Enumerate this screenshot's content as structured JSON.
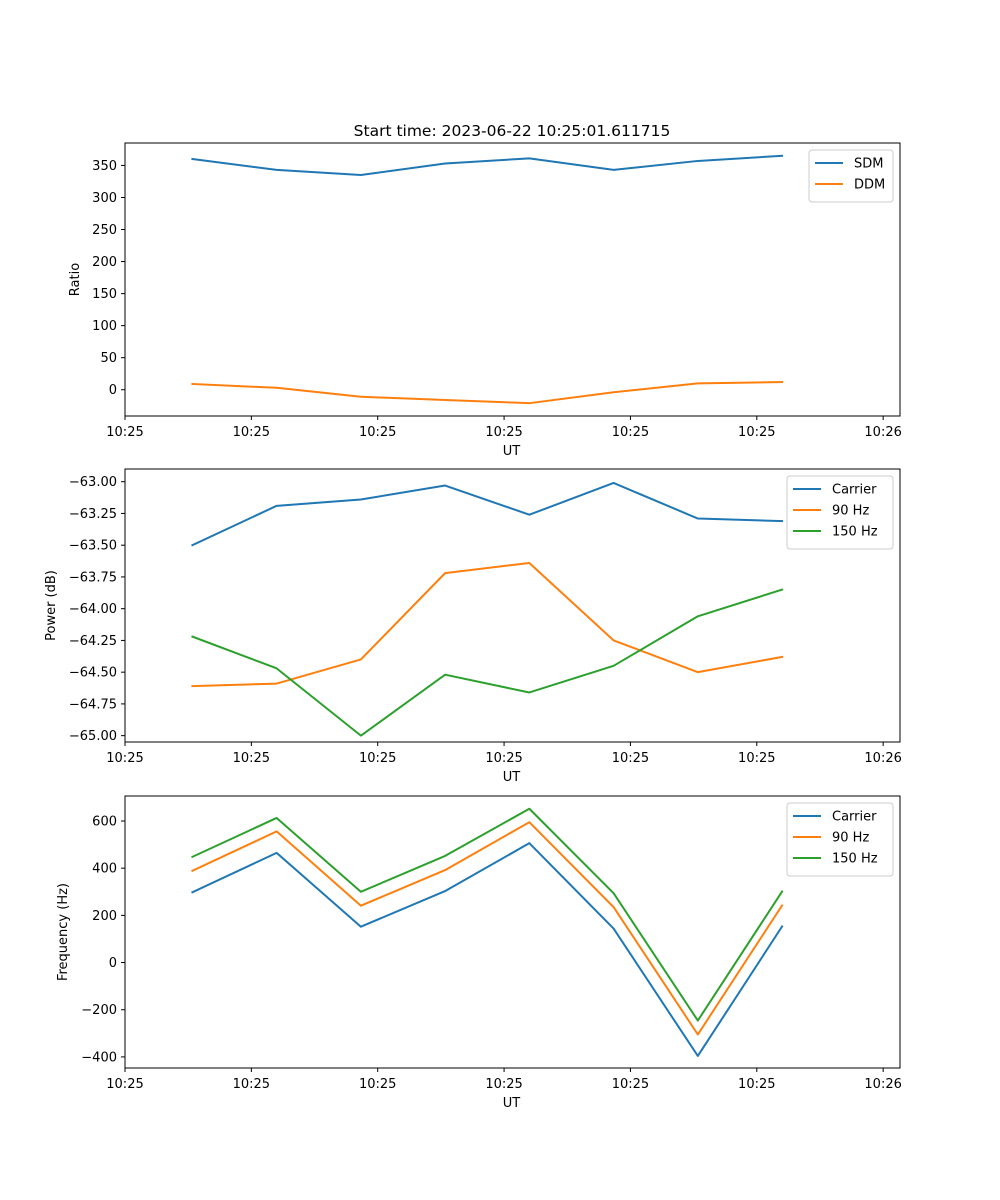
{
  "figure": {
    "title": "Start time: 2023-06-22 10:25:01.611715"
  },
  "chart_data": [
    {
      "type": "line",
      "xlabel": "UT",
      "ylabel": "Ratio",
      "x": [
        1,
        2,
        3,
        4,
        5,
        6,
        7,
        8
      ],
      "xlim": [
        0.2,
        9.4
      ],
      "x_ticks": [
        {
          "at": 0.2,
          "label": "10:25"
        },
        {
          "at": 1.7,
          "label": "10:25"
        },
        {
          "at": 3.2,
          "label": "10:25"
        },
        {
          "at": 4.7,
          "label": "10:25"
        },
        {
          "at": 6.2,
          "label": "10:25"
        },
        {
          "at": 7.7,
          "label": "10:25"
        },
        {
          "at": 9.2,
          "label": "10:26"
        }
      ],
      "ylim": [
        -41,
        385
      ],
      "y_ticks": [
        {
          "at": 0,
          "label": "0"
        },
        {
          "at": 50,
          "label": "50"
        },
        {
          "at": 100,
          "label": "100"
        },
        {
          "at": 150,
          "label": "150"
        },
        {
          "at": 200,
          "label": "200"
        },
        {
          "at": 250,
          "label": "250"
        },
        {
          "at": 300,
          "label": "300"
        },
        {
          "at": 350,
          "label": "350"
        }
      ],
      "legend_position": "top-right",
      "grid": false,
      "series": [
        {
          "name": "SDM",
          "color": "#1f77b4",
          "values": [
            360,
            343,
            335,
            353,
            361,
            343,
            357,
            365
          ]
        },
        {
          "name": "DDM",
          "color": "#ff7f0e",
          "values": [
            9,
            3,
            -11,
            -16,
            -21,
            -4,
            10,
            12
          ]
        }
      ]
    },
    {
      "type": "line",
      "xlabel": "UT",
      "ylabel": "Power (dB)",
      "x": [
        1,
        2,
        3,
        4,
        5,
        6,
        7,
        8
      ],
      "xlim": [
        0.2,
        9.4
      ],
      "x_ticks": [
        {
          "at": 0.2,
          "label": "10:25"
        },
        {
          "at": 1.7,
          "label": "10:25"
        },
        {
          "at": 3.2,
          "label": "10:25"
        },
        {
          "at": 4.7,
          "label": "10:25"
        },
        {
          "at": 6.2,
          "label": "10:25"
        },
        {
          "at": 7.7,
          "label": "10:25"
        },
        {
          "at": 9.2,
          "label": "10:26"
        }
      ],
      "ylim": [
        -65.05,
        -62.9
      ],
      "y_ticks": [
        {
          "at": -65.0,
          "label": "−65.00"
        },
        {
          "at": -64.75,
          "label": "−64.75"
        },
        {
          "at": -64.5,
          "label": "−64.50"
        },
        {
          "at": -64.25,
          "label": "−64.25"
        },
        {
          "at": -64.0,
          "label": "−64.00"
        },
        {
          "at": -63.75,
          "label": "−63.75"
        },
        {
          "at": -63.5,
          "label": "−63.50"
        },
        {
          "at": -63.25,
          "label": "−63.25"
        },
        {
          "at": -63.0,
          "label": "−63.00"
        }
      ],
      "legend_position": "top-right",
      "grid": false,
      "series": [
        {
          "name": "Carrier",
          "color": "#1f77b4",
          "values": [
            -63.5,
            -63.19,
            -63.14,
            -63.03,
            -63.26,
            -63.01,
            -63.29,
            -63.31
          ]
        },
        {
          "name": "90 Hz",
          "color": "#ff7f0e",
          "values": [
            -64.61,
            -64.59,
            -64.4,
            -63.72,
            -63.64,
            -64.25,
            -64.5,
            -64.38
          ]
        },
        {
          "name": "150 Hz",
          "color": "#2ca02c",
          "values": [
            -64.22,
            -64.47,
            -65.0,
            -64.52,
            -64.66,
            -64.45,
            -64.06,
            -63.85
          ]
        }
      ]
    },
    {
      "type": "line",
      "xlabel": "UT",
      "ylabel": "Frequency (Hz)",
      "x": [
        1,
        2,
        3,
        4,
        5,
        6,
        7,
        8
      ],
      "xlim": [
        0.2,
        9.4
      ],
      "x_ticks": [
        {
          "at": 0.2,
          "label": "10:25"
        },
        {
          "at": 1.7,
          "label": "10:25"
        },
        {
          "at": 3.2,
          "label": "10:25"
        },
        {
          "at": 4.7,
          "label": "10:25"
        },
        {
          "at": 6.2,
          "label": "10:25"
        },
        {
          "at": 7.7,
          "label": "10:25"
        },
        {
          "at": 9.2,
          "label": "10:26"
        }
      ],
      "ylim": [
        -447,
        706
      ],
      "y_ticks": [
        {
          "at": -400,
          "label": "−400"
        },
        {
          "at": -200,
          "label": "−200"
        },
        {
          "at": 0,
          "label": "0"
        },
        {
          "at": 200,
          "label": "200"
        },
        {
          "at": 400,
          "label": "400"
        },
        {
          "at": 600,
          "label": "600"
        }
      ],
      "legend_position": "top-right",
      "grid": false,
      "series": [
        {
          "name": "Carrier",
          "color": "#1f77b4",
          "values": [
            298,
            465,
            152,
            303,
            506,
            144,
            -396,
            153
          ]
        },
        {
          "name": "90 Hz",
          "color": "#ff7f0e",
          "values": [
            389,
            556,
            241,
            392,
            595,
            235,
            -305,
            242
          ]
        },
        {
          "name": "150 Hz",
          "color": "#2ca02c",
          "values": [
            448,
            613,
            300,
            452,
            652,
            294,
            -246,
            301
          ]
        }
      ]
    }
  ]
}
